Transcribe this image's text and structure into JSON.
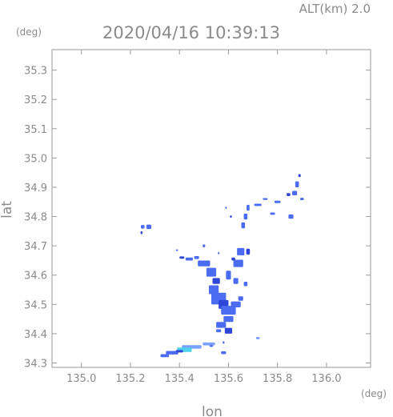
{
  "header": {
    "alt_label": "ALT(km) 2.0",
    "timestamp": "2020/04/16 10:39:13"
  },
  "axes": {
    "y_unit": "(deg)",
    "x_unit": "(deg)",
    "x_name": "lon",
    "y_name": "lat",
    "x_ticks": [
      "135.0",
      "135.2",
      "135.4",
      "135.6",
      "135.8",
      "136.0"
    ],
    "y_ticks": [
      "35.3",
      "35.2",
      "35.1",
      "35.0",
      "34.9",
      "34.8",
      "34.7",
      "34.6",
      "34.5",
      "34.4",
      "34.3"
    ]
  },
  "chart_data": {
    "type": "heatmap",
    "x_range": [
      134.88,
      136.18
    ],
    "y_range": [
      34.285,
      35.37
    ],
    "colors": {
      "echo_main": "#4b6cf0",
      "echo_dark": "#2f45d8",
      "echo_light": "#7aa0ff",
      "echo_cyan": "#4fd2e8"
    },
    "echo_cells": [
      {
        "lon": 135.89,
        "lat": 34.94,
        "w": 0.01,
        "h": 0.01,
        "level": "dark"
      },
      {
        "lon": 135.88,
        "lat": 34.91,
        "w": 0.015,
        "h": 0.02,
        "level": "main"
      },
      {
        "lon": 135.87,
        "lat": 34.88,
        "w": 0.02,
        "h": 0.015,
        "level": "main"
      },
      {
        "lon": 135.845,
        "lat": 34.875,
        "w": 0.015,
        "h": 0.01,
        "level": "dark"
      },
      {
        "lon": 135.9,
        "lat": 34.86,
        "w": 0.015,
        "h": 0.008,
        "level": "main"
      },
      {
        "lon": 135.8,
        "lat": 34.85,
        "w": 0.025,
        "h": 0.008,
        "level": "main"
      },
      {
        "lon": 135.75,
        "lat": 34.86,
        "w": 0.02,
        "h": 0.006,
        "level": "main"
      },
      {
        "lon": 135.72,
        "lat": 34.84,
        "w": 0.03,
        "h": 0.008,
        "level": "main"
      },
      {
        "lon": 135.855,
        "lat": 34.8,
        "w": 0.02,
        "h": 0.015,
        "level": "main"
      },
      {
        "lon": 135.78,
        "lat": 34.81,
        "w": 0.02,
        "h": 0.008,
        "level": "main"
      },
      {
        "lon": 135.68,
        "lat": 34.83,
        "w": 0.012,
        "h": 0.02,
        "level": "main"
      },
      {
        "lon": 135.67,
        "lat": 34.8,
        "w": 0.015,
        "h": 0.02,
        "level": "main"
      },
      {
        "lon": 135.66,
        "lat": 34.77,
        "w": 0.015,
        "h": 0.02,
        "level": "main"
      },
      {
        "lon": 135.59,
        "lat": 34.83,
        "w": 0.006,
        "h": 0.008,
        "level": "main"
      },
      {
        "lon": 135.61,
        "lat": 34.8,
        "w": 0.008,
        "h": 0.008,
        "level": "dark"
      },
      {
        "lon": 135.25,
        "lat": 34.765,
        "w": 0.015,
        "h": 0.012,
        "level": "main"
      },
      {
        "lon": 135.275,
        "lat": 34.765,
        "w": 0.02,
        "h": 0.015,
        "level": "main"
      },
      {
        "lon": 135.245,
        "lat": 34.745,
        "w": 0.008,
        "h": 0.01,
        "level": "dark"
      },
      {
        "lon": 135.5,
        "lat": 34.7,
        "w": 0.01,
        "h": 0.01,
        "level": "main"
      },
      {
        "lon": 135.39,
        "lat": 34.685,
        "w": 0.008,
        "h": 0.006,
        "level": "main"
      },
      {
        "lon": 135.56,
        "lat": 34.675,
        "w": 0.006,
        "h": 0.008,
        "level": "main"
      },
      {
        "lon": 135.65,
        "lat": 34.68,
        "w": 0.03,
        "h": 0.025,
        "level": "main"
      },
      {
        "lon": 135.68,
        "lat": 34.68,
        "w": 0.015,
        "h": 0.02,
        "level": "dark"
      },
      {
        "lon": 135.64,
        "lat": 34.64,
        "w": 0.04,
        "h": 0.025,
        "level": "main"
      },
      {
        "lon": 135.62,
        "lat": 34.655,
        "w": 0.015,
        "h": 0.01,
        "level": "dark"
      },
      {
        "lon": 135.6,
        "lat": 34.6,
        "w": 0.02,
        "h": 0.03,
        "level": "main"
      },
      {
        "lon": 135.63,
        "lat": 34.58,
        "w": 0.02,
        "h": 0.02,
        "level": "main"
      },
      {
        "lon": 135.67,
        "lat": 34.57,
        "w": 0.015,
        "h": 0.015,
        "level": "main"
      },
      {
        "lon": 135.44,
        "lat": 34.655,
        "w": 0.03,
        "h": 0.01,
        "level": "main"
      },
      {
        "lon": 135.41,
        "lat": 34.66,
        "w": 0.02,
        "h": 0.008,
        "level": "dark"
      },
      {
        "lon": 135.47,
        "lat": 34.66,
        "w": 0.02,
        "h": 0.01,
        "level": "main"
      },
      {
        "lon": 135.5,
        "lat": 34.64,
        "w": 0.05,
        "h": 0.02,
        "level": "main"
      },
      {
        "lon": 135.53,
        "lat": 34.61,
        "w": 0.04,
        "h": 0.03,
        "level": "main"
      },
      {
        "lon": 135.55,
        "lat": 34.58,
        "w": 0.03,
        "h": 0.02,
        "level": "dark"
      },
      {
        "lon": 135.54,
        "lat": 34.55,
        "w": 0.04,
        "h": 0.03,
        "level": "main"
      },
      {
        "lon": 135.56,
        "lat": 34.52,
        "w": 0.06,
        "h": 0.04,
        "level": "main"
      },
      {
        "lon": 135.58,
        "lat": 34.5,
        "w": 0.04,
        "h": 0.03,
        "level": "dark"
      },
      {
        "lon": 135.6,
        "lat": 34.48,
        "w": 0.06,
        "h": 0.03,
        "level": "main"
      },
      {
        "lon": 135.63,
        "lat": 34.5,
        "w": 0.04,
        "h": 0.02,
        "level": "main"
      },
      {
        "lon": 135.65,
        "lat": 34.52,
        "w": 0.02,
        "h": 0.015,
        "level": "main"
      },
      {
        "lon": 135.6,
        "lat": 34.45,
        "w": 0.04,
        "h": 0.02,
        "level": "main"
      },
      {
        "lon": 135.57,
        "lat": 34.43,
        "w": 0.04,
        "h": 0.02,
        "level": "main"
      },
      {
        "lon": 135.6,
        "lat": 34.41,
        "w": 0.03,
        "h": 0.02,
        "level": "dark"
      },
      {
        "lon": 135.56,
        "lat": 34.41,
        "w": 0.02,
        "h": 0.01,
        "level": "main"
      },
      {
        "lon": 135.72,
        "lat": 34.385,
        "w": 0.015,
        "h": 0.008,
        "level": "light"
      },
      {
        "lon": 135.58,
        "lat": 34.37,
        "w": 0.008,
        "h": 0.008,
        "level": "main"
      },
      {
        "lon": 135.53,
        "lat": 34.36,
        "w": 0.015,
        "h": 0.01,
        "level": "main"
      },
      {
        "lon": 135.58,
        "lat": 34.335,
        "w": 0.02,
        "h": 0.01,
        "level": "main"
      },
      {
        "lon": 135.52,
        "lat": 34.365,
        "w": 0.05,
        "h": 0.01,
        "level": "light"
      },
      {
        "lon": 135.45,
        "lat": 34.355,
        "w": 0.08,
        "h": 0.012,
        "level": "light"
      },
      {
        "lon": 135.42,
        "lat": 34.345,
        "w": 0.06,
        "h": 0.015,
        "level": "cyan"
      },
      {
        "lon": 135.37,
        "lat": 34.335,
        "w": 0.05,
        "h": 0.012,
        "level": "main"
      },
      {
        "lon": 135.34,
        "lat": 34.325,
        "w": 0.035,
        "h": 0.01,
        "level": "main"
      },
      {
        "lon": 135.4,
        "lat": 34.34,
        "w": 0.03,
        "h": 0.008,
        "level": "dark"
      }
    ]
  }
}
